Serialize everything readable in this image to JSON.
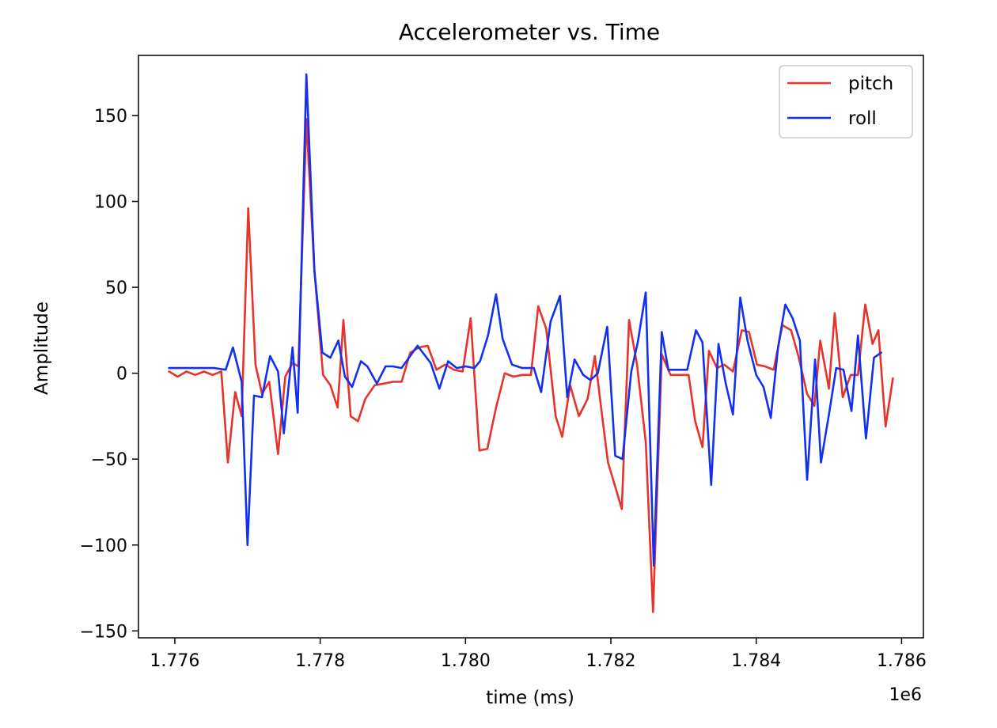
{
  "chart_data": {
    "type": "line",
    "title": "Accelerometer vs. Time",
    "xlabel": "time (ms)",
    "ylabel": "Amplitude",
    "x_offset_label": "1e6",
    "xlim": [
      1775500,
      1786300
    ],
    "ylim": [
      -154,
      185
    ],
    "x_ticks": [
      {
        "value": 1776000,
        "label": "1.776"
      },
      {
        "value": 1778000,
        "label": "1.778"
      },
      {
        "value": 1780000,
        "label": "1.780"
      },
      {
        "value": 1782000,
        "label": "1.782"
      },
      {
        "value": 1784000,
        "label": "1.784"
      },
      {
        "value": 1786000,
        "label": "1.786"
      }
    ],
    "y_ticks": [
      {
        "value": 150,
        "label": "150"
      },
      {
        "value": 100,
        "label": "100"
      },
      {
        "value": 50,
        "label": "50"
      },
      {
        "value": 0,
        "label": "0"
      },
      {
        "value": -50,
        "label": "−50"
      },
      {
        "value": -100,
        "label": "−100"
      },
      {
        "value": -150,
        "label": "−150"
      }
    ],
    "grid": false,
    "legend_position": "top-right",
    "series": [
      {
        "name": "pitch",
        "color": "#e8322a",
        "points": [
          [
            1775920,
            1
          ],
          [
            1776040,
            -2
          ],
          [
            1776160,
            1
          ],
          [
            1776280,
            -1
          ],
          [
            1776400,
            1
          ],
          [
            1776520,
            -1
          ],
          [
            1776640,
            1
          ],
          [
            1776730,
            -52
          ],
          [
            1776830,
            -11
          ],
          [
            1776920,
            -25
          ],
          [
            1777010,
            96
          ],
          [
            1777110,
            5
          ],
          [
            1777200,
            -12
          ],
          [
            1777300,
            -5
          ],
          [
            1777420,
            -47
          ],
          [
            1777520,
            -2
          ],
          [
            1777620,
            6
          ],
          [
            1777700,
            4
          ],
          [
            1777810,
            148
          ],
          [
            1777920,
            60
          ],
          [
            1778040,
            -1
          ],
          [
            1778140,
            -7
          ],
          [
            1778240,
            -20
          ],
          [
            1778320,
            31
          ],
          [
            1778420,
            -25
          ],
          [
            1778520,
            -28
          ],
          [
            1778620,
            -15
          ],
          [
            1778750,
            -7
          ],
          [
            1778880,
            -6
          ],
          [
            1779000,
            -5
          ],
          [
            1779120,
            -5
          ],
          [
            1779240,
            12
          ],
          [
            1779360,
            15
          ],
          [
            1779480,
            16
          ],
          [
            1779600,
            2
          ],
          [
            1779720,
            5
          ],
          [
            1779840,
            2
          ],
          [
            1779960,
            1
          ],
          [
            1780070,
            32
          ],
          [
            1780190,
            -45
          ],
          [
            1780300,
            -44
          ],
          [
            1780420,
            -20
          ],
          [
            1780540,
            0
          ],
          [
            1780660,
            -2
          ],
          [
            1780780,
            -1
          ],
          [
            1780900,
            -1
          ],
          [
            1781000,
            39
          ],
          [
            1781110,
            26
          ],
          [
            1781240,
            -25
          ],
          [
            1781330,
            -37
          ],
          [
            1781440,
            -7
          ],
          [
            1781560,
            -25
          ],
          [
            1781680,
            -15
          ],
          [
            1781780,
            10
          ],
          [
            1781880,
            -25
          ],
          [
            1781960,
            -52
          ],
          [
            1782060,
            -66
          ],
          [
            1782150,
            -79
          ],
          [
            1782250,
            31
          ],
          [
            1782360,
            5
          ],
          [
            1782480,
            -40
          ],
          [
            1782580,
            -139
          ],
          [
            1782700,
            11
          ],
          [
            1782820,
            -1
          ],
          [
            1782950,
            -1
          ],
          [
            1783070,
            -1
          ],
          [
            1783160,
            -28
          ],
          [
            1783260,
            -43
          ],
          [
            1783350,
            13
          ],
          [
            1783460,
            3
          ],
          [
            1783560,
            5
          ],
          [
            1783680,
            1
          ],
          [
            1783800,
            25
          ],
          [
            1783900,
            24
          ],
          [
            1784010,
            5
          ],
          [
            1784120,
            4
          ],
          [
            1784240,
            2
          ],
          [
            1784360,
            28
          ],
          [
            1784480,
            25
          ],
          [
            1784580,
            10
          ],
          [
            1784700,
            -12
          ],
          [
            1784800,
            -19
          ],
          [
            1784880,
            19
          ],
          [
            1785000,
            -9
          ],
          [
            1785080,
            35
          ],
          [
            1785190,
            -14
          ],
          [
            1785300,
            -1
          ],
          [
            1785400,
            -1
          ],
          [
            1785500,
            40
          ],
          [
            1785600,
            17
          ],
          [
            1785680,
            25
          ],
          [
            1785780,
            -31
          ],
          [
            1785880,
            -3
          ]
        ]
      },
      {
        "name": "roll",
        "color": "#1230f0",
        "points": [
          [
            1775920,
            3
          ],
          [
            1776120,
            3
          ],
          [
            1776350,
            3
          ],
          [
            1776550,
            3
          ],
          [
            1776700,
            2
          ],
          [
            1776800,
            15
          ],
          [
            1776920,
            -5
          ],
          [
            1777000,
            -100
          ],
          [
            1777090,
            -13
          ],
          [
            1777200,
            -14
          ],
          [
            1777310,
            10
          ],
          [
            1777420,
            1
          ],
          [
            1777500,
            -35
          ],
          [
            1777620,
            15
          ],
          [
            1777690,
            -23
          ],
          [
            1777810,
            174
          ],
          [
            1777920,
            60
          ],
          [
            1778030,
            12
          ],
          [
            1778140,
            9
          ],
          [
            1778250,
            19
          ],
          [
            1778340,
            -2
          ],
          [
            1778440,
            -8
          ],
          [
            1778560,
            7
          ],
          [
            1778650,
            4
          ],
          [
            1778780,
            -6
          ],
          [
            1778900,
            4
          ],
          [
            1779000,
            4
          ],
          [
            1779120,
            3
          ],
          [
            1779340,
            16
          ],
          [
            1779520,
            6
          ],
          [
            1779640,
            -9
          ],
          [
            1779760,
            7
          ],
          [
            1779880,
            3
          ],
          [
            1780000,
            4
          ],
          [
            1780120,
            3
          ],
          [
            1780200,
            7
          ],
          [
            1780310,
            22
          ],
          [
            1780420,
            46
          ],
          [
            1780510,
            20
          ],
          [
            1780640,
            5
          ],
          [
            1780780,
            3
          ],
          [
            1780940,
            3
          ],
          [
            1781040,
            -11
          ],
          [
            1781170,
            30
          ],
          [
            1781300,
            45
          ],
          [
            1781400,
            -14
          ],
          [
            1781500,
            8
          ],
          [
            1781620,
            -1
          ],
          [
            1781720,
            -4
          ],
          [
            1781820,
            0
          ],
          [
            1781950,
            27
          ],
          [
            1782060,
            -48
          ],
          [
            1782160,
            -50
          ],
          [
            1782280,
            1
          ],
          [
            1782370,
            18
          ],
          [
            1782480,
            47
          ],
          [
            1782590,
            -112
          ],
          [
            1782700,
            24
          ],
          [
            1782790,
            2
          ],
          [
            1782930,
            2
          ],
          [
            1783050,
            2
          ],
          [
            1783170,
            25
          ],
          [
            1783260,
            18
          ],
          [
            1783380,
            -65
          ],
          [
            1783480,
            17
          ],
          [
            1783580,
            -6
          ],
          [
            1783680,
            -24
          ],
          [
            1783780,
            44
          ],
          [
            1783880,
            19
          ],
          [
            1784000,
            -1
          ],
          [
            1784100,
            -8
          ],
          [
            1784200,
            -26
          ],
          [
            1784300,
            15
          ],
          [
            1784400,
            40
          ],
          [
            1784500,
            32
          ],
          [
            1784600,
            19
          ],
          [
            1784700,
            -62
          ],
          [
            1784810,
            8
          ],
          [
            1784890,
            -52
          ],
          [
            1785000,
            -24
          ],
          [
            1785100,
            3
          ],
          [
            1785200,
            2
          ],
          [
            1785310,
            -22
          ],
          [
            1785400,
            22
          ],
          [
            1785510,
            -38
          ],
          [
            1785620,
            9
          ],
          [
            1785720,
            12
          ]
        ]
      }
    ]
  }
}
